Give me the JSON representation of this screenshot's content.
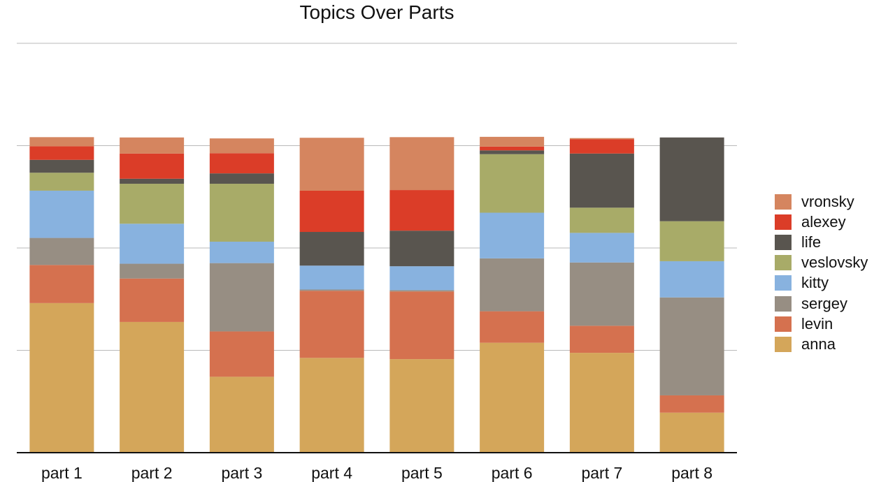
{
  "chart_data": {
    "type": "bar",
    "stacked": true,
    "normalized": true,
    "title": "Topics Over Parts",
    "xlabel": "",
    "ylabel": "",
    "categories": [
      "part 1",
      "part 2",
      "part 3",
      "part 4",
      "part 5",
      "part 6",
      "part 7",
      "part 8"
    ],
    "ylim": [
      0,
      1.3
    ],
    "grid": true,
    "legend_position": "right",
    "series": [
      {
        "name": "anna",
        "color": "#D4A65A",
        "values": [
          0.475,
          0.415,
          0.241,
          0.301,
          0.297,
          0.349,
          0.317,
          0.127
        ]
      },
      {
        "name": "levin",
        "color": "#D5714F",
        "values": [
          0.121,
          0.138,
          0.144,
          0.213,
          0.215,
          0.1,
          0.086,
          0.055
        ]
      },
      {
        "name": "sergey",
        "color": "#978E83",
        "values": [
          0.086,
          0.047,
          0.217,
          0.004,
          0.004,
          0.168,
          0.201,
          0.311
        ]
      },
      {
        "name": "kitty",
        "color": "#88B2DF",
        "values": [
          0.15,
          0.127,
          0.068,
          0.076,
          0.076,
          0.145,
          0.094,
          0.115
        ]
      },
      {
        "name": "veslovsky",
        "color": "#A8AB68",
        "values": [
          0.057,
          0.127,
          0.184,
          0.0,
          0.0,
          0.186,
          0.08,
          0.127
        ]
      },
      {
        "name": "life",
        "color": "#59554F",
        "values": [
          0.041,
          0.016,
          0.033,
          0.107,
          0.113,
          0.012,
          0.172,
          0.266
        ]
      },
      {
        "name": "alexey",
        "color": "#DB3D28",
        "values": [
          0.043,
          0.08,
          0.064,
          0.131,
          0.129,
          0.012,
          0.045,
          0.0
        ]
      },
      {
        "name": "vronsky",
        "color": "#D5855F",
        "values": [
          0.029,
          0.051,
          0.047,
          0.168,
          0.168,
          0.031,
          0.004,
          0.0
        ]
      }
    ]
  }
}
